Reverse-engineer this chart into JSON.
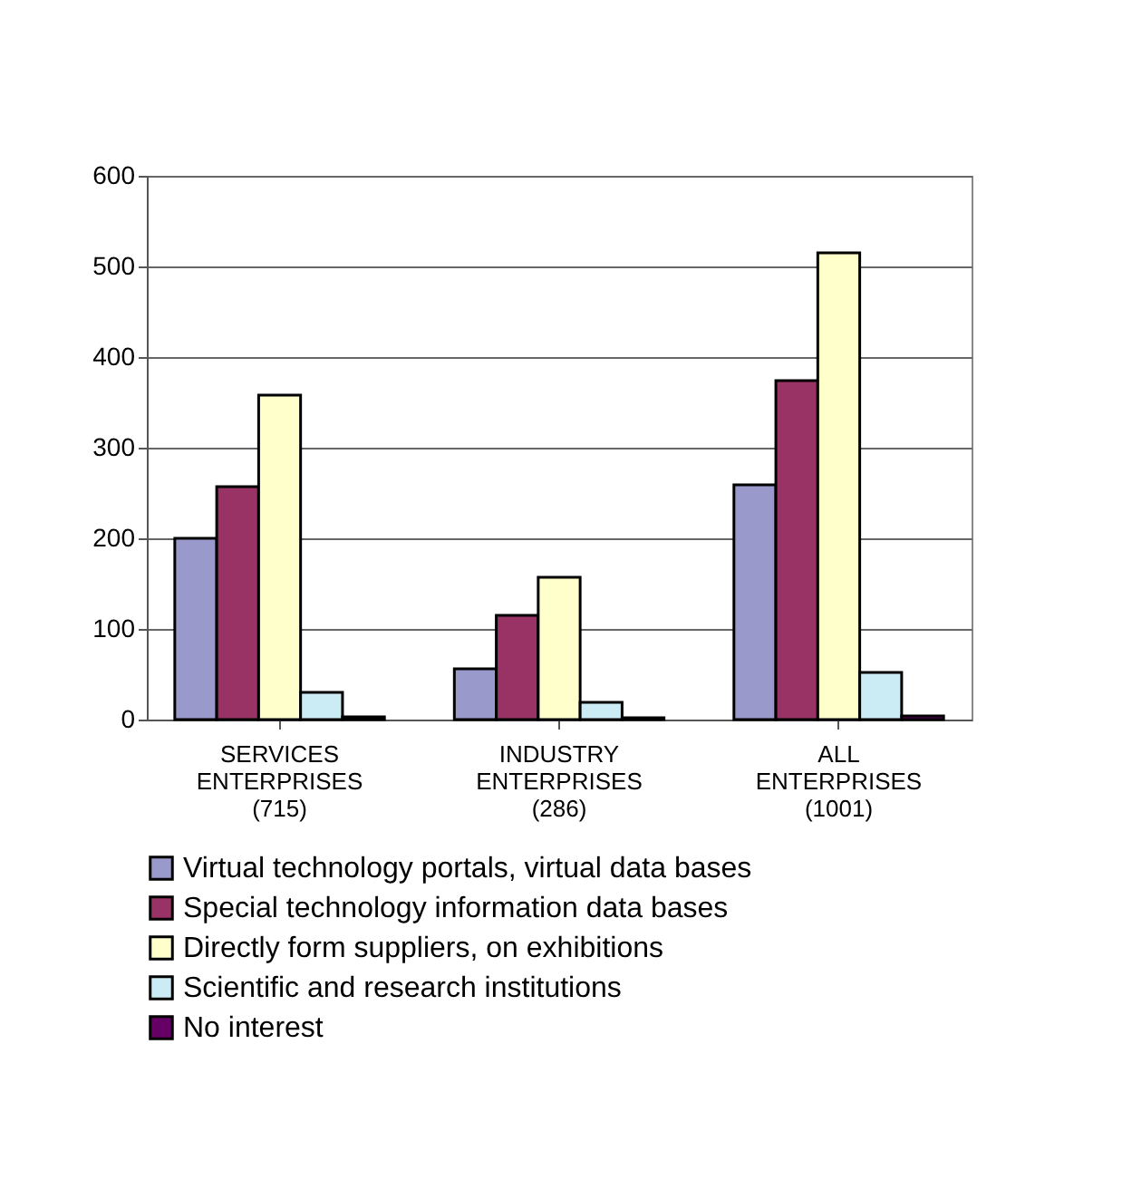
{
  "chart_data": {
    "type": "bar",
    "categories": [
      "SERVICES\nENTERPRISES\n(715)",
      "INDUSTRY\nENTERPRISES\n(286)",
      "ALL\nENTERPRISES\n(1001)"
    ],
    "series": [
      {
        "name": "Virtual technology portals, virtual data bases",
        "color": "#9999cc",
        "values": [
          200,
          56,
          259
        ]
      },
      {
        "name": "Special technology information data bases",
        "color": "#993366",
        "values": [
          257,
          115,
          374
        ]
      },
      {
        "name": "Directly form suppliers, on exhibitions",
        "color": "#ffffcc",
        "values": [
          358,
          157,
          515
        ]
      },
      {
        "name": "Scientific and research institutions",
        "color": "#ccecf5",
        "values": [
          30,
          19,
          52
        ]
      },
      {
        "name": "No interest",
        "color": "#660066",
        "values": [
          3,
          2,
          4
        ]
      }
    ],
    "ylim": [
      0,
      600
    ],
    "yticks": [
      0,
      100,
      200,
      300,
      400,
      500,
      600
    ],
    "grid": "y",
    "legend": "bottom"
  }
}
